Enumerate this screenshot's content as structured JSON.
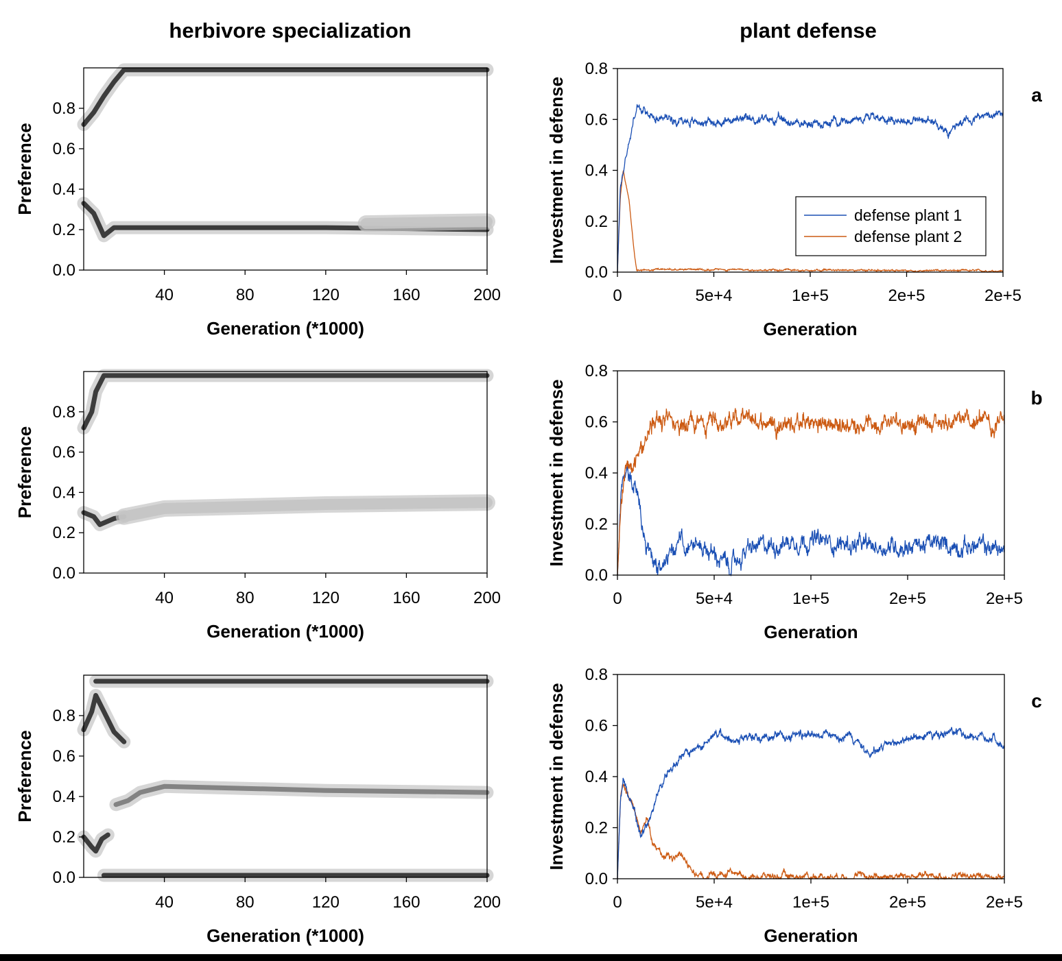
{
  "column_titles": {
    "left": "herbivore specialization",
    "right": "plant defense"
  },
  "colors": {
    "plant1": "#1a4fb4",
    "plant2": "#cc5a12",
    "density_dark": "#2b2b2b",
    "density_mid": "#7a7a7a",
    "density_light": "#c4c4c4"
  },
  "chart_data": [
    {
      "panel": "a-left",
      "type": "heatmap",
      "xlabel": "Generation (*1000)",
      "ylabel": "Preference",
      "xlim": [
        0,
        200
      ],
      "ylim": [
        0,
        1.0
      ],
      "xticks": [
        40,
        80,
        120,
        160,
        200
      ],
      "yticks": [
        0.0,
        0.2,
        0.4,
        0.6,
        0.8
      ],
      "bands": [
        {
          "level": "dark",
          "points": [
            [
              0,
              0.72
            ],
            [
              5,
              0.78
            ],
            [
              10,
              0.86
            ],
            [
              15,
              0.93
            ],
            [
              20,
              0.99
            ],
            [
              200,
              0.99
            ]
          ]
        },
        {
          "level": "dark",
          "points": [
            [
              0,
              0.33
            ],
            [
              5,
              0.28
            ],
            [
              10,
              0.17
            ],
            [
              15,
              0.21
            ],
            [
              40,
              0.21
            ],
            [
              120,
              0.21
            ],
            [
              200,
              0.2
            ]
          ]
        },
        {
          "level": "light",
          "points": [
            [
              140,
              0.23
            ],
            [
              200,
              0.24
            ]
          ]
        }
      ]
    },
    {
      "panel": "a-right",
      "type": "line",
      "letter": "a",
      "xlabel": "Generation",
      "ylabel": "Investment in defense",
      "xlim": [
        0,
        200000
      ],
      "ylim": [
        0,
        0.8
      ],
      "xticks": [
        "0",
        "5e+4",
        "1e+5",
        "2e+5",
        "2e+5"
      ],
      "yticks": [
        "0.0",
        "0.2",
        "0.4",
        "0.6",
        "0.8"
      ],
      "legend": [
        "defense plant 1",
        "defense plant 2"
      ],
      "series": [
        {
          "name": "defense plant 1",
          "color_key": "plant1",
          "keypoints": [
            [
              0,
              0
            ],
            [
              1500,
              0.33
            ],
            [
              4000,
              0.44
            ],
            [
              7000,
              0.55
            ],
            [
              10000,
              0.65
            ],
            [
              15000,
              0.62
            ],
            [
              40000,
              0.59
            ],
            [
              80000,
              0.6
            ],
            [
              100000,
              0.58
            ],
            [
              130000,
              0.61
            ],
            [
              165000,
              0.59
            ],
            [
              172000,
              0.55
            ],
            [
              180000,
              0.6
            ],
            [
              200000,
              0.62
            ]
          ],
          "noise": 0.014
        },
        {
          "name": "defense plant 2",
          "color_key": "plant2",
          "keypoints": [
            [
              0,
              0
            ],
            [
              1500,
              0.3
            ],
            [
              3000,
              0.4
            ],
            [
              6000,
              0.28
            ],
            [
              9000,
              0.06
            ],
            [
              10000,
              0.01
            ],
            [
              200000,
              0.005
            ]
          ],
          "noise": 0.003
        }
      ]
    },
    {
      "panel": "b-left",
      "type": "heatmap",
      "xlabel": "Generation (*1000)",
      "ylabel": "Preference",
      "xlim": [
        0,
        200
      ],
      "ylim": [
        0,
        1.0
      ],
      "xticks": [
        40,
        80,
        120,
        160,
        200
      ],
      "yticks": [
        0.0,
        0.2,
        0.4,
        0.6,
        0.8
      ],
      "bands": [
        {
          "level": "dark",
          "points": [
            [
              0,
              0.72
            ],
            [
              4,
              0.8
            ],
            [
              6,
              0.9
            ],
            [
              10,
              0.98
            ],
            [
              200,
              0.98
            ]
          ]
        },
        {
          "level": "dark",
          "points": [
            [
              0,
              0.3
            ],
            [
              5,
              0.28
            ],
            [
              8,
              0.24
            ],
            [
              15,
              0.27
            ],
            [
              20,
              0.28
            ]
          ]
        },
        {
          "level": "light",
          "points": [
            [
              20,
              0.28
            ],
            [
              40,
              0.32
            ],
            [
              80,
              0.33
            ],
            [
              120,
              0.34
            ],
            [
              200,
              0.35
            ]
          ]
        }
      ]
    },
    {
      "panel": "b-right",
      "type": "line",
      "letter": "b",
      "xlabel": "Generation",
      "ylabel": "Investment in defense",
      "xlim": [
        0,
        200000
      ],
      "ylim": [
        0,
        0.8
      ],
      "xticks": [
        "0",
        "5e+4",
        "1e+5",
        "2e+5",
        "2e+5"
      ],
      "yticks": [
        "0.0",
        "0.2",
        "0.4",
        "0.6",
        "0.8"
      ],
      "series": [
        {
          "name": "defense plant 1",
          "color_key": "plant1",
          "keypoints": [
            [
              0,
              0
            ],
            [
              2000,
              0.3
            ],
            [
              5000,
              0.41
            ],
            [
              10000,
              0.33
            ],
            [
              15000,
              0.08
            ],
            [
              20000,
              0.02
            ],
            [
              25000,
              0.06
            ],
            [
              33000,
              0.14
            ],
            [
              45000,
              0.11
            ],
            [
              58000,
              0.03
            ],
            [
              68000,
              0.1
            ],
            [
              95000,
              0.14
            ],
            [
              130000,
              0.11
            ],
            [
              160000,
              0.12
            ],
            [
              190000,
              0.11
            ],
            [
              200000,
              0.1
            ]
          ],
          "noise": 0.03
        },
        {
          "name": "defense plant 2",
          "color_key": "plant2",
          "keypoints": [
            [
              0,
              0
            ],
            [
              2000,
              0.3
            ],
            [
              4000,
              0.42
            ],
            [
              8000,
              0.39
            ],
            [
              14000,
              0.5
            ],
            [
              20000,
              0.62
            ],
            [
              30000,
              0.59
            ],
            [
              60000,
              0.61
            ],
            [
              100000,
              0.59
            ],
            [
              150000,
              0.6
            ],
            [
              200000,
              0.6
            ]
          ],
          "noise": 0.03
        }
      ]
    },
    {
      "panel": "c-left",
      "type": "heatmap",
      "xlabel": "Generation (*1000)",
      "ylabel": "Preference",
      "xlim": [
        0,
        200
      ],
      "ylim": [
        0,
        1.0
      ],
      "xticks": [
        40,
        80,
        120,
        160,
        200
      ],
      "yticks": [
        0.0,
        0.2,
        0.4,
        0.6,
        0.8
      ],
      "bands": [
        {
          "level": "dark",
          "points": [
            [
              6,
              0.97
            ],
            [
              200,
              0.97
            ]
          ]
        },
        {
          "level": "dark",
          "points": [
            [
              0,
              0.73
            ],
            [
              4,
              0.82
            ],
            [
              6,
              0.9
            ],
            [
              10,
              0.82
            ],
            [
              15,
              0.72
            ],
            [
              20,
              0.67
            ]
          ]
        },
        {
          "level": "dark",
          "points": [
            [
              0,
              0.2
            ],
            [
              4,
              0.15
            ],
            [
              6,
              0.13
            ],
            [
              9,
              0.19
            ],
            [
              12,
              0.21
            ]
          ]
        },
        {
          "level": "mid",
          "points": [
            [
              16,
              0.36
            ],
            [
              22,
              0.38
            ],
            [
              28,
              0.42
            ],
            [
              40,
              0.45
            ],
            [
              80,
              0.44
            ],
            [
              120,
              0.43
            ],
            [
              200,
              0.42
            ]
          ]
        },
        {
          "level": "dark",
          "points": [
            [
              10,
              0.01
            ],
            [
              200,
              0.01
            ]
          ]
        }
      ]
    },
    {
      "panel": "c-right",
      "type": "line",
      "letter": "c",
      "xlabel": "Generation",
      "ylabel": "Investment in defense",
      "xlim": [
        0,
        200000
      ],
      "ylim": [
        0,
        0.8
      ],
      "xticks": [
        "0",
        "5e+4",
        "1e+5",
        "2e+5",
        "2e+5"
      ],
      "yticks": [
        "0.0",
        "0.2",
        "0.4",
        "0.6",
        "0.8"
      ],
      "series": [
        {
          "name": "defense plant 1",
          "color_key": "plant1",
          "keypoints": [
            [
              0,
              0
            ],
            [
              1500,
              0.3
            ],
            [
              3000,
              0.39
            ],
            [
              8000,
              0.28
            ],
            [
              12000,
              0.17
            ],
            [
              16000,
              0.22
            ],
            [
              22000,
              0.37
            ],
            [
              30000,
              0.46
            ],
            [
              40000,
              0.5
            ],
            [
              50000,
              0.56
            ],
            [
              70000,
              0.55
            ],
            [
              100000,
              0.57
            ],
            [
              120000,
              0.56
            ],
            [
              130000,
              0.49
            ],
            [
              150000,
              0.55
            ],
            [
              175000,
              0.57
            ],
            [
              195000,
              0.55
            ],
            [
              200000,
              0.5
            ]
          ],
          "noise": 0.014
        },
        {
          "name": "defense plant 2",
          "color_key": "plant2",
          "keypoints": [
            [
              0,
              0
            ],
            [
              1500,
              0.3
            ],
            [
              3000,
              0.37
            ],
            [
              8000,
              0.28
            ],
            [
              12000,
              0.18
            ],
            [
              15000,
              0.24
            ],
            [
              18000,
              0.14
            ],
            [
              24000,
              0.09
            ],
            [
              33000,
              0.08
            ],
            [
              40000,
              0.01
            ],
            [
              200000,
              0.01
            ]
          ],
          "noise": 0.012
        }
      ]
    }
  ]
}
